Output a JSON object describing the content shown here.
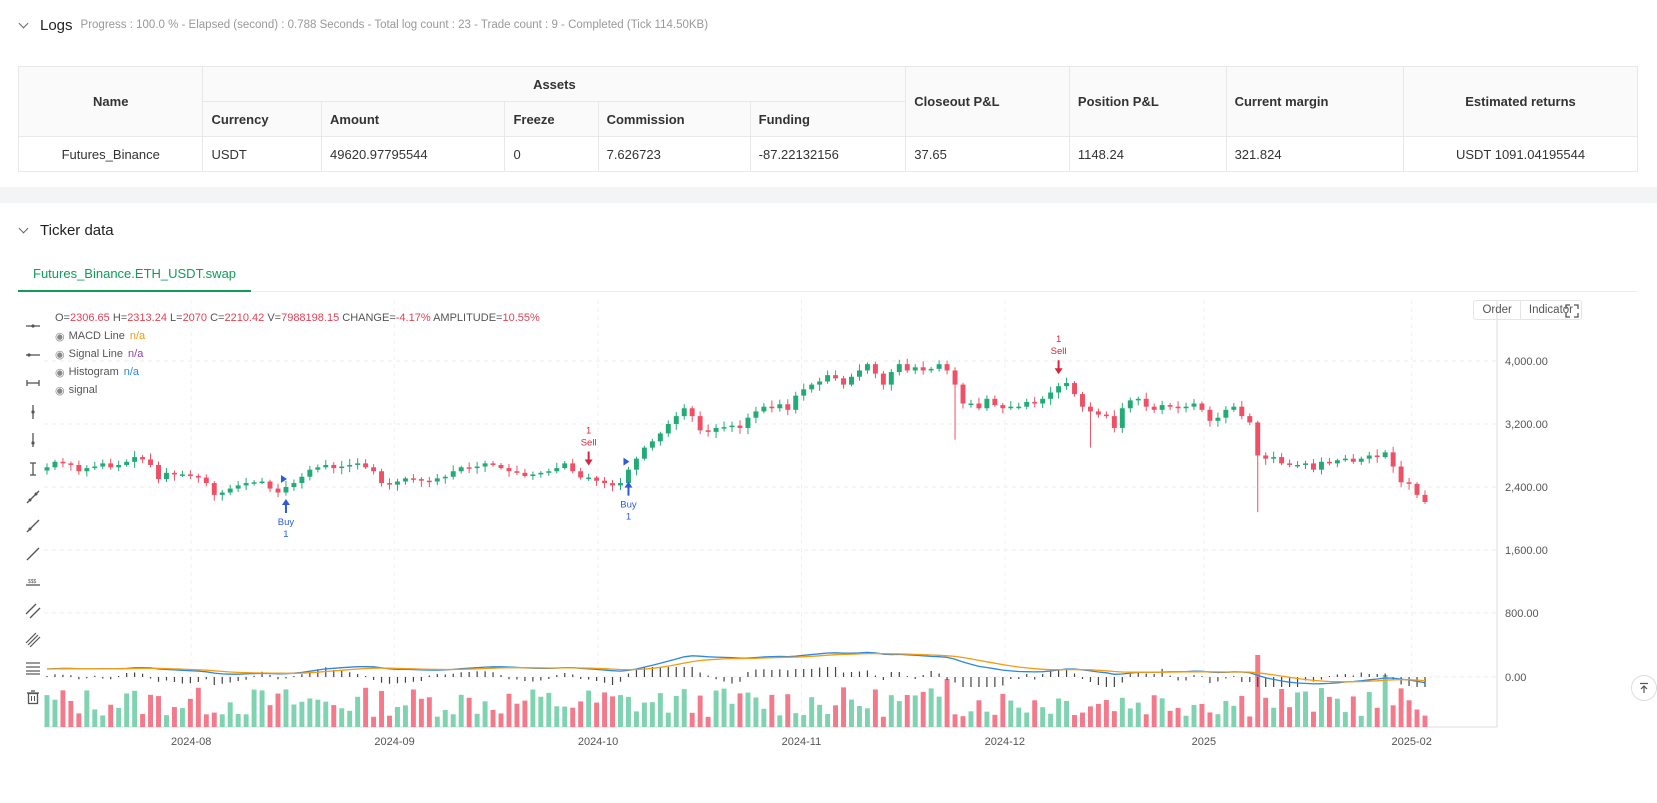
{
  "logs": {
    "title": "Logs",
    "summary": "Progress : 100.0 % - Elapsed (second) : 0.788  Seconds - Total log count : 23 - Trade count : 9 - Completed (Tick 114.50KB)"
  },
  "assets_table": {
    "headers": {
      "name": "Name",
      "assets": "Assets",
      "currency": "Currency",
      "amount": "Amount",
      "freeze": "Freeze",
      "commission": "Commission",
      "funding": "Funding",
      "closeout_pl": "Closeout P&L",
      "position_pl": "Position P&L",
      "current_margin": "Current margin",
      "estimated_returns": "Estimated returns"
    },
    "row": {
      "name": "Futures_Binance",
      "currency": "USDT",
      "amount": "49620.97795544",
      "freeze": "0",
      "commission": "7.626723",
      "funding": "-87.22132156",
      "closeout_pl": "37.65",
      "position_pl": "1148.24",
      "current_margin": "321.824",
      "estimated_returns": "USDT 1091.04195544"
    }
  },
  "ticker": {
    "title": "Ticker data",
    "tab": "Futures_Binance.ETH_USDT.swap"
  },
  "chart": {
    "ohlc": {
      "o_label": "O=",
      "o": "2306.65",
      "h_label": "H=",
      "h": "2313.24",
      "l_label": "L=",
      "l": "2070",
      "c_label": "C=",
      "c": "2210.42",
      "v_label": "V=",
      "v": "7988198.15",
      "change_label": "CHANGE=",
      "change": "-4.17%",
      "amp_label": "AMPLITUDE=",
      "amp": "10.55%"
    },
    "legend": [
      {
        "name": "MACD Line",
        "value": "n/a",
        "color": "#f39c12"
      },
      {
        "name": "Signal Line",
        "value": "n/a",
        "color": "#8e44ad"
      },
      {
        "name": "Histogram",
        "value": "n/a",
        "color": "#2e86de"
      },
      {
        "name": "signal",
        "value": "",
        "color": "#555555"
      }
    ],
    "buttons": {
      "order": "Order",
      "indicator": "Indicator"
    },
    "colors": {
      "up": "#26a69a",
      "up_fill": "#22ab76",
      "down": "#ef5065",
      "macd": "#2e86de",
      "signal_line": "#f39c12"
    }
  },
  "chart_data": {
    "type": "candlestick",
    "y_ticks": [
      "4,000.00",
      "3,200.00",
      "2,400.00",
      "1,600.00",
      "800.00"
    ],
    "y_ticks_values": [
      4000,
      3200,
      2400,
      1600,
      800
    ],
    "osc_tick": "0.00",
    "x_ticks": [
      "2024-08",
      "2024-09",
      "2024-10",
      "2024-11",
      "2024-12",
      "2025",
      "2025-02"
    ],
    "ylim": [
      0,
      4400
    ],
    "closes": [
      2650,
      2720,
      2700,
      2680,
      2600,
      2640,
      2660,
      2700,
      2650,
      2680,
      2720,
      2780,
      2750,
      2680,
      2500,
      2580,
      2560,
      2560,
      2540,
      2520,
      2450,
      2300,
      2330,
      2380,
      2420,
      2450,
      2460,
      2470,
      2380,
      2330,
      2400,
      2450,
      2530,
      2620,
      2650,
      2680,
      2640,
      2660,
      2680,
      2700,
      2650,
      2600,
      2450,
      2430,
      2470,
      2510,
      2500,
      2480,
      2470,
      2510,
      2530,
      2600,
      2650,
      2640,
      2660,
      2700,
      2680,
      2640,
      2600,
      2580,
      2540,
      2560,
      2580,
      2600,
      2640,
      2700,
      2600,
      2520,
      2520,
      2480,
      2450,
      2420,
      2450,
      2620,
      2760,
      2900,
      2980,
      3080,
      3200,
      3300,
      3400,
      3300,
      3120,
      3100,
      3150,
      3160,
      3180,
      3150,
      3280,
      3360,
      3420,
      3400,
      3450,
      3380,
      3560,
      3640,
      3700,
      3740,
      3820,
      3780,
      3700,
      3800,
      3880,
      3960,
      3840,
      3700,
      3860,
      3960,
      3880,
      3920,
      3880,
      3900,
      3960,
      3880,
      3700,
      3460,
      3460,
      3400,
      3520,
      3440,
      3400,
      3420,
      3420,
      3480,
      3460,
      3520,
      3600,
      3680,
      3720,
      3580,
      3420,
      3360,
      3320,
      3300,
      3150,
      3400,
      3500,
      3520,
      3420,
      3380,
      3440,
      3420,
      3400,
      3420,
      3460,
      3380,
      3240,
      3280,
      3380,
      3420,
      3300,
      3220,
      2800,
      2760,
      2780,
      2700,
      2680,
      2680,
      2700,
      2620,
      2720,
      2700,
      2740,
      2760,
      2720,
      2760,
      2800,
      2780,
      2840,
      2660,
      2460,
      2440,
      2300,
      2210
    ],
    "buy_signals": [
      {
        "index": 30,
        "label": "Buy",
        "qty": "1"
      },
      {
        "index": 73,
        "label": "Buy",
        "qty": "1"
      }
    ],
    "sell_signals": [
      {
        "index": 68,
        "label": "Sell",
        "qty": "1"
      },
      {
        "index": 127,
        "label": "Sell",
        "qty": "1"
      }
    ]
  }
}
